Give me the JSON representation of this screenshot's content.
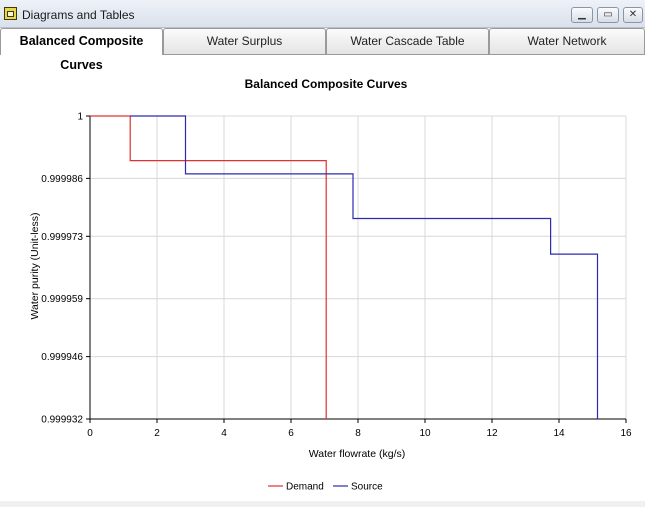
{
  "window": {
    "title": "Diagrams and Tables",
    "minimize_glyph": "▁",
    "maximize_glyph": "▭",
    "close_glyph": "✕"
  },
  "tabs": [
    {
      "label": "Balanced Composite Curves",
      "active": true
    },
    {
      "label": "Water Surplus",
      "active": false
    },
    {
      "label": "Water Cascade Table",
      "active": false
    },
    {
      "label": "Water Network",
      "active": false
    }
  ],
  "colors": {
    "demand": "#e03030",
    "source": "#2b2bb0",
    "grid": "#d8d8d8",
    "axis": "#000000"
  },
  "chart_data": {
    "type": "line",
    "title": "Balanced Composite Curves",
    "xlabel": "Water flowrate (kg/s)",
    "ylabel": "Water purity (Unit-less)",
    "xlim": [
      0,
      16
    ],
    "ylim": [
      0.999932,
      1
    ],
    "x_ticks": [
      0,
      2,
      4,
      6,
      8,
      10,
      12,
      14,
      16
    ],
    "y_ticks": [
      1,
      0.999986,
      0.999973,
      0.999959,
      0.999946,
      0.999932
    ],
    "grid": true,
    "legend_position": "bottom",
    "series": [
      {
        "name": "Demand",
        "color": "#e03030",
        "x": [
          0,
          1.2,
          1.2,
          7.05,
          7.05
        ],
        "y": [
          1,
          1,
          0.99999,
          0.99999,
          0.999932
        ]
      },
      {
        "name": "Source",
        "color": "#2b2bb0",
        "x": [
          1.2,
          2.85,
          2.85,
          7.85,
          7.85,
          13.75,
          13.75,
          15.15,
          15.15
        ],
        "y": [
          1,
          1,
          0.999987,
          0.999987,
          0.999977,
          0.999977,
          0.999969,
          0.999969,
          0.999932
        ]
      }
    ]
  }
}
